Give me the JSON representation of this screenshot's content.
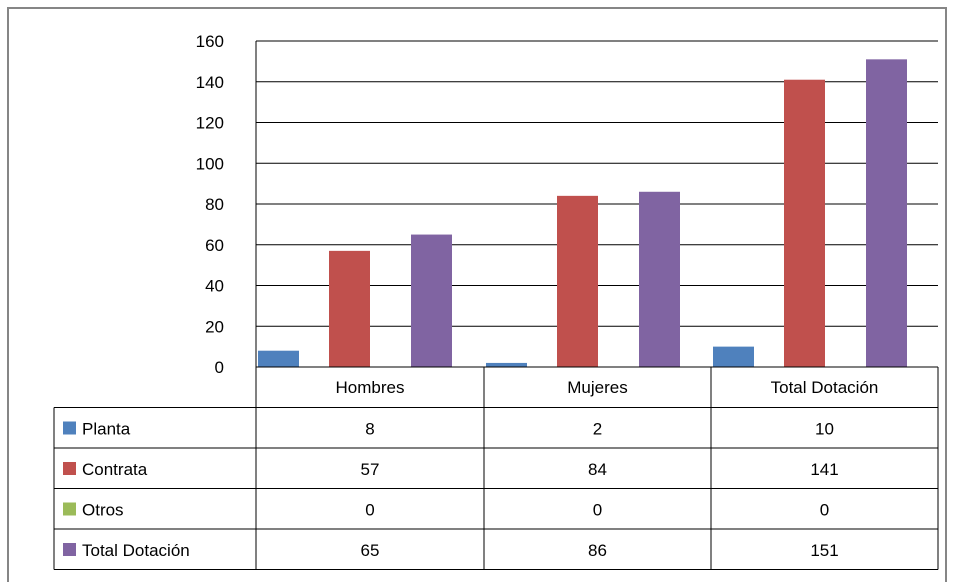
{
  "chart_data": {
    "type": "bar",
    "categories": [
      "Hombres",
      "Mujeres",
      "Total Dotación"
    ],
    "series": [
      {
        "name": "Planta",
        "values": [
          8,
          2,
          10
        ],
        "color": "#4f81bd"
      },
      {
        "name": "Contrata",
        "values": [
          57,
          84,
          141
        ],
        "color": "#c0504d"
      },
      {
        "name": "Otros",
        "values": [
          0,
          0,
          0
        ],
        "color": "#9bbb59"
      },
      {
        "name": "Total Dotación",
        "values": [
          65,
          86,
          151
        ],
        "color": "#8064a2"
      }
    ],
    "ylim": [
      0,
      160
    ],
    "yticks": [
      "0",
      "20",
      "40",
      "60",
      "80",
      "100",
      "120",
      "140",
      "160"
    ],
    "grid": true,
    "legend": "data-table",
    "table": [
      {
        "series": "Planta",
        "cells": [
          "8",
          "2",
          "10"
        ]
      },
      {
        "series": "Contrata",
        "cells": [
          "57",
          "84",
          "141"
        ]
      },
      {
        "series": "Otros",
        "cells": [
          "0",
          "0",
          "0"
        ]
      },
      {
        "series": "Total Dotación",
        "cells": [
          "65",
          "86",
          "151"
        ]
      }
    ]
  }
}
